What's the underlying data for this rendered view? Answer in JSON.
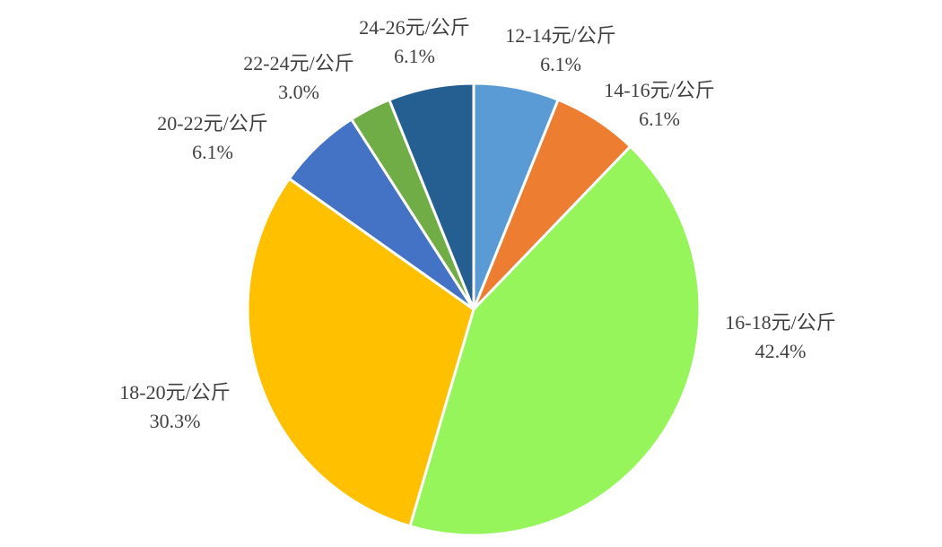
{
  "chart_data": {
    "type": "pie",
    "categories": [
      "12-14元/公斤",
      "14-16元/公斤",
      "16-18元/公斤",
      "18-20元/公斤",
      "20-22元/公斤",
      "22-24元/公斤",
      "24-26元/公斤"
    ],
    "values": [
      6.1,
      6.1,
      42.4,
      30.3,
      6.1,
      3.0,
      6.1
    ],
    "value_labels": [
      "6.1%",
      "6.1%",
      "42.4%",
      "30.3%",
      "6.1%",
      "3.0%",
      "6.1%"
    ],
    "colors": [
      "#5b9bd5",
      "#ed7d31",
      "#95f55a",
      "#ffc000",
      "#4472c4",
      "#70ad47",
      "#255e91"
    ]
  }
}
